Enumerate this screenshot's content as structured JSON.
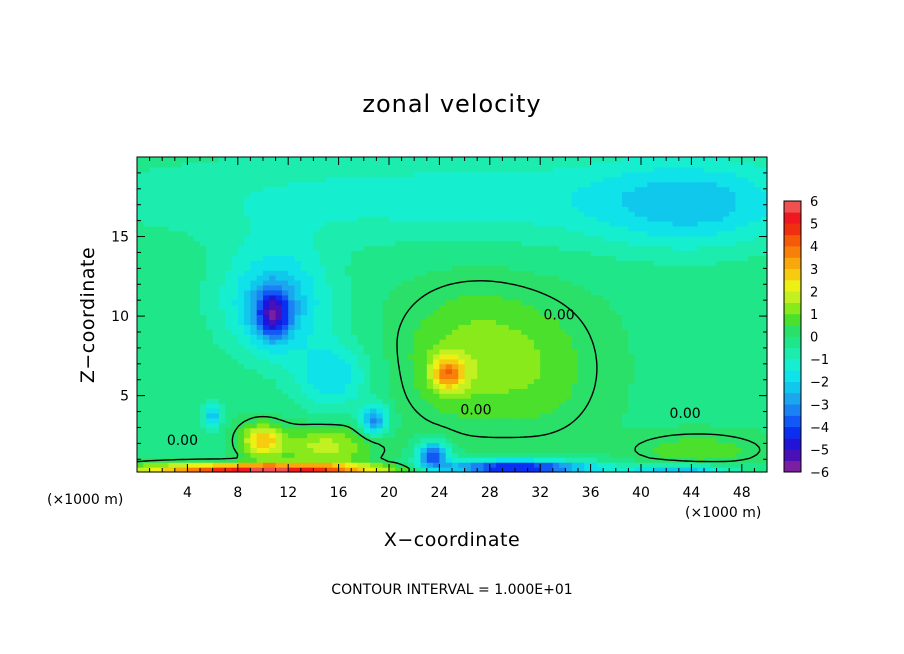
{
  "chart_data": {
    "type": "heatmap",
    "title": "zonal velocity",
    "xlabel": "X−coordinate",
    "ylabel": "Z−coordinate",
    "x_unit_left": "(×1000 m)",
    "x_unit_right": "(×1000 m)",
    "footer": "CONTOUR INTERVAL = 1.000E+01",
    "xlim": [
      0,
      50
    ],
    "ylim": [
      0.2,
      20
    ],
    "x_ticks": [
      {
        "value": 4,
        "label": "4"
      },
      {
        "value": 8,
        "label": "8"
      },
      {
        "value": 12,
        "label": "12"
      },
      {
        "value": 16,
        "label": "16"
      },
      {
        "value": 20,
        "label": "20"
      },
      {
        "value": 24,
        "label": "24"
      },
      {
        "value": 28,
        "label": "28"
      },
      {
        "value": 32,
        "label": "32"
      },
      {
        "value": 36,
        "label": "36"
      },
      {
        "value": 40,
        "label": "40"
      },
      {
        "value": 44,
        "label": "44"
      },
      {
        "value": 48,
        "label": "48"
      }
    ],
    "y_ticks": [
      {
        "value": 5,
        "label": "5"
      },
      {
        "value": 10,
        "label": "10"
      },
      {
        "value": 15,
        "label": "15"
      }
    ],
    "colorbar": {
      "min": -6,
      "max": 6,
      "levels": [
        {
          "value": -6,
          "color": "#7a1fa0"
        },
        {
          "value": -5.5,
          "color": "#4a10b8"
        },
        {
          "value": -5,
          "color": "#1f14d8"
        },
        {
          "value": -4.5,
          "color": "#0a2ff0"
        },
        {
          "value": -4,
          "color": "#1258f5"
        },
        {
          "value": -3.5,
          "color": "#1a82f2"
        },
        {
          "value": -3,
          "color": "#1ba6ee"
        },
        {
          "value": -2.5,
          "color": "#10c8ec"
        },
        {
          "value": -2,
          "color": "#10e2ea"
        },
        {
          "value": -1.5,
          "color": "#16eed0"
        },
        {
          "value": -1,
          "color": "#1cecae"
        },
        {
          "value": -0.5,
          "color": "#20e68a"
        },
        {
          "value": 0,
          "color": "#2ae068"
        },
        {
          "value": 0.5,
          "color": "#4ae02c"
        },
        {
          "value": 1,
          "color": "#88ea1a"
        },
        {
          "value": 1.5,
          "color": "#c2f020"
        },
        {
          "value": 2,
          "color": "#eef014"
        },
        {
          "value": 2.5,
          "color": "#f6cc10"
        },
        {
          "value": 3,
          "color": "#f8a80c"
        },
        {
          "value": 3.5,
          "color": "#f8800a"
        },
        {
          "value": 4,
          "color": "#f55a08"
        },
        {
          "value": 4.5,
          "color": "#f02e10"
        },
        {
          "value": 5,
          "color": "#f01820"
        },
        {
          "value": 5.5,
          "color": "#f05050"
        },
        {
          "value": 6,
          "color": "#f08a8a"
        }
      ],
      "tick_labels": [
        {
          "value": 6,
          "label": "6"
        },
        {
          "value": 5,
          "label": "5"
        },
        {
          "value": 4,
          "label": "4"
        },
        {
          "value": 3,
          "label": "3"
        },
        {
          "value": 2,
          "label": "2"
        },
        {
          "value": 1,
          "label": "1"
        },
        {
          "value": 0,
          "label": "0"
        },
        {
          "value": -1,
          "label": "−1"
        },
        {
          "value": -2,
          "label": "−2"
        },
        {
          "value": -3,
          "label": "−3"
        },
        {
          "value": -4,
          "label": "−4"
        },
        {
          "value": -5,
          "label": "−5"
        },
        {
          "value": -6,
          "label": "−6"
        }
      ]
    },
    "contour_labels": [
      {
        "text": "0.00",
        "x": 3.6,
        "z": 1.9
      },
      {
        "text": "0.00",
        "x": 26.9,
        "z": 3.8
      },
      {
        "text": "0.00",
        "x": 33.5,
        "z": 9.8
      },
      {
        "text": "0.00",
        "x": 43.5,
        "z": 3.6
      }
    ],
    "field_features": [
      {
        "name": "upper-band",
        "x": 25,
        "z": 17.5,
        "value": -1.2,
        "sx": 30,
        "sz": 3
      },
      {
        "name": "upper-right-band",
        "x": 44,
        "z": 17,
        "value": -1.6,
        "sx": 8,
        "sz": 3
      },
      {
        "name": "cyan-cell",
        "x": 11,
        "z": 11,
        "value": -2.4,
        "sx": 4.5,
        "sz": 3.5
      },
      {
        "name": "blue-core",
        "x": 10.8,
        "z": 10.1,
        "value": -3.3,
        "sx": 1.4,
        "sz": 1.6
      },
      {
        "name": "cyan-mid",
        "x": 15.5,
        "z": 6.2,
        "value": -1.8,
        "sx": 3,
        "sz": 2.2
      },
      {
        "name": "blue-low",
        "x": 18.8,
        "z": 3.5,
        "value": -3.1,
        "sx": 1.1,
        "sz": 0.9
      },
      {
        "name": "cyan-small",
        "x": 6,
        "z": 3.8,
        "value": -2.2,
        "sx": 0.8,
        "sz": 0.8
      },
      {
        "name": "warm-plume",
        "x": 27,
        "z": 7.5,
        "value": 1.4,
        "sx": 5.5,
        "sz": 4
      },
      {
        "name": "plume-core",
        "x": 24.7,
        "z": 6.4,
        "value": 3.0,
        "sx": 1.3,
        "sz": 1.1
      },
      {
        "name": "right-plume",
        "x": 33,
        "z": 6.5,
        "value": 0.5,
        "sx": 4,
        "sz": 4
      },
      {
        "name": "low-left-warm",
        "x": 10,
        "z": 2.2,
        "value": 2.8,
        "sx": 1.6,
        "sz": 1.0
      },
      {
        "name": "low-left-warm-2",
        "x": 15,
        "z": 1.8,
        "value": 1.8,
        "sx": 3.5,
        "sz": 1.3
      },
      {
        "name": "right-blob",
        "x": 44.5,
        "z": 1.6,
        "value": 1.0,
        "sx": 4.5,
        "sz": 0.9
      },
      {
        "name": "surface-warm",
        "x": 10,
        "z": 0.4,
        "value": 5.6,
        "sx": 9,
        "sz": 0.35
      },
      {
        "name": "surface-cold",
        "x": 30,
        "z": 0.5,
        "value": -5.0,
        "sx": 6,
        "sz": 0.45
      },
      {
        "name": "cold-spot",
        "x": 23.5,
        "z": 1.3,
        "value": -4.0,
        "sx": 1.2,
        "sz": 0.8
      },
      {
        "name": "right-cold",
        "x": 43,
        "z": 0.4,
        "value": -2.5,
        "sx": 4,
        "sz": 0.3
      }
    ]
  }
}
